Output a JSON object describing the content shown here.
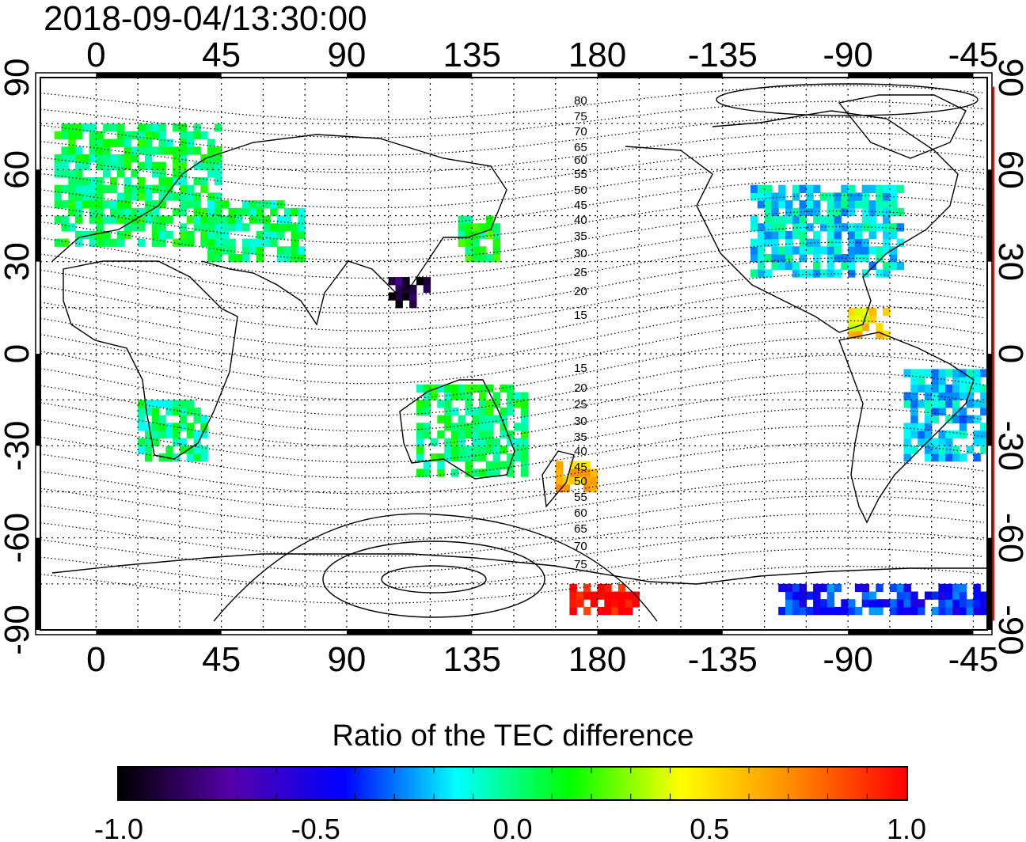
{
  "title": "2018-09-04/13:30:00",
  "map": {
    "top_lon_labels": [
      "0",
      "45",
      "90",
      "135",
      "180",
      "-135",
      "-90",
      "-45"
    ],
    "bottom_lon_labels": [
      "0",
      "45",
      "90",
      "135",
      "180",
      "-135",
      "-90",
      "-45"
    ],
    "left_lat_labels": [
      "90",
      "60",
      "30",
      "0",
      "-30",
      "-60",
      "-90"
    ],
    "right_lat_labels": [
      "90",
      "60",
      "30",
      "0",
      "-30",
      "-60",
      "-90"
    ],
    "lon_range": [
      -20,
      320
    ],
    "lat_range": [
      -90,
      90
    ],
    "grid": true,
    "contour_labels_north": [
      "80",
      "75",
      "70",
      "65",
      "60",
      "55",
      "50",
      "45",
      "40",
      "35",
      "30",
      "25",
      "20",
      "15"
    ],
    "contour_labels_south": [
      "15",
      "20",
      "25",
      "30",
      "35",
      "40",
      "45",
      "50",
      "55",
      "60",
      "65",
      "70",
      "75"
    ],
    "accent_color": "#ff0000"
  },
  "colorbar": {
    "title": "Ratio of the TEC difference",
    "tick_labels": [
      "-1.0",
      "-0.5",
      "0.0",
      "0.5",
      "1.0"
    ],
    "range": [
      -1.0,
      1.0
    ],
    "colors": [
      "#000000",
      "#5500aa",
      "#0000ff",
      "#00ffff",
      "#00ff00",
      "#ffff00",
      "#ff8800",
      "#ff0000"
    ]
  },
  "chart_data": {
    "type": "heatmap",
    "x_label": "",
    "y_label": "",
    "x_range": [
      -20,
      320
    ],
    "y_range": [
      -90,
      90
    ],
    "value_range": [
      -1.0,
      1.0
    ],
    "regions": [
      {
        "lon": [
          -15,
          45
        ],
        "lat": [
          35,
          75
        ],
        "value": 0.05
      },
      {
        "lon": [
          40,
          75
        ],
        "lat": [
          30,
          50
        ],
        "value": 0.0
      },
      {
        "lon": [
          15,
          40
        ],
        "lat": [
          -35,
          -15
        ],
        "value": 0.0
      },
      {
        "lon": [
          105,
          120
        ],
        "lat": [
          15,
          25
        ],
        "value": -0.9
      },
      {
        "lon": [
          130,
          145
        ],
        "lat": [
          30,
          45
        ],
        "value": 0.1
      },
      {
        "lon": [
          115,
          155
        ],
        "lat": [
          -40,
          -10
        ],
        "value": 0.05
      },
      {
        "lon": [
          165,
          180
        ],
        "lat": [
          -45,
          -35
        ],
        "value": 0.6
      },
      {
        "lon": [
          235,
          290
        ],
        "lat": [
          25,
          55
        ],
        "value": -0.15
      },
      {
        "lon": [
          270,
          285
        ],
        "lat": [
          5,
          15
        ],
        "value": 0.5
      },
      {
        "lon": [
          290,
          320
        ],
        "lat": [
          -35,
          -5
        ],
        "value": -0.2
      },
      {
        "lon": [
          170,
          195
        ],
        "lat": [
          -85,
          -75
        ],
        "value": 1.0
      },
      {
        "lon": [
          245,
          320
        ],
        "lat": [
          -85,
          -75
        ],
        "value": -0.4
      }
    ]
  }
}
